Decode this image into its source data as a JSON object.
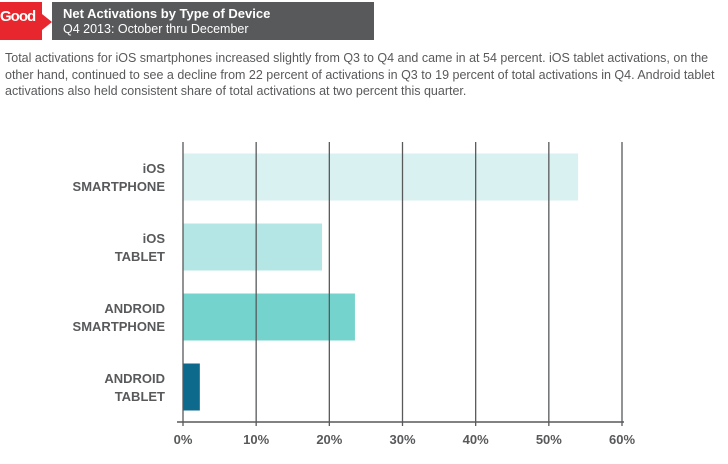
{
  "header": {
    "logo": "Good",
    "title": "Net Activations by Type of Device",
    "subtitle": "Q4 2013: October thru December"
  },
  "description": "Total activations for iOS smartphones increased slightly from Q3 to Q4 and came in at 54 percent. iOS tablet activations, on the other hand, continued to see a decline from 22 percent of activations in Q3 to 19 percent of total activations in Q4. Android tablet activations also held consistent share of total activations at two percent this quarter.",
  "colors": {
    "logo_red": "#e8262d",
    "title_bar": "#58595b",
    "text": "#58595b",
    "grid": "#58595b"
  },
  "chart_data": {
    "type": "bar",
    "orientation": "horizontal",
    "categories": [
      [
        "iOS",
        "SMARTPHONE"
      ],
      [
        "iOS",
        "TABLET"
      ],
      [
        "ANDROID",
        "SMARTPHONE"
      ],
      [
        "ANDROID",
        "TABLET"
      ]
    ],
    "values": [
      54,
      19,
      23.5,
      2.3
    ],
    "bar_colors": [
      "#d9f1f1",
      "#b3e6e4",
      "#74d3cc",
      "#0d6a8d"
    ],
    "xlim": [
      0,
      60
    ],
    "xticks": [
      0,
      10,
      20,
      30,
      40,
      50,
      60
    ],
    "tick_labels": [
      "0%",
      "10%",
      "20%",
      "30%",
      "40%",
      "50%",
      "60%"
    ],
    "grid": true
  }
}
